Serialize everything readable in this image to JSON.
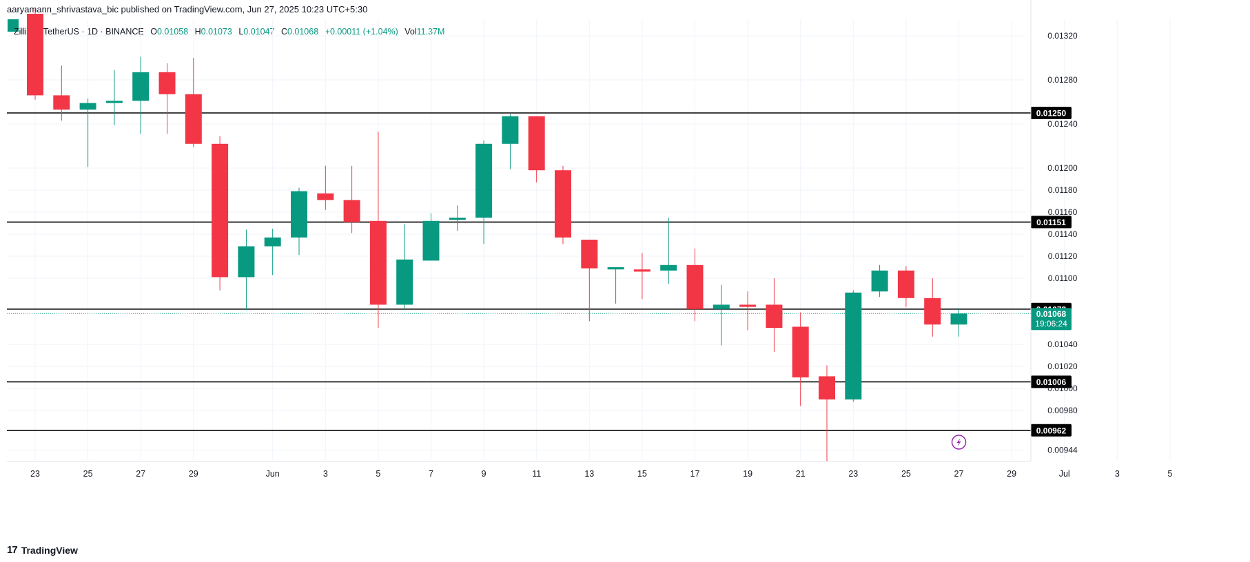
{
  "publisher": "aaryamann_shrivastava_bic published on TradingView.com, Jun 27, 2025 10:23 UTC+5:30",
  "legend": {
    "symbol": "Zilliqa / TetherUS · 1D · BINANCE",
    "open_label": "O",
    "open": "0.01058",
    "high_label": "H",
    "high": "0.01073",
    "low_label": "L",
    "low": "0.01047",
    "close_label": "C",
    "close": "0.01068",
    "change": "+0.00011 (+1.04%)",
    "vol_label": "Vol",
    "vol": "11.37M"
  },
  "brand": {
    "logo": "17",
    "name": "TradingView"
  },
  "colors": {
    "up": "#089981",
    "down": "#f23645",
    "grid": "#f0f3fa",
    "text": "#131722",
    "line": "#000000",
    "alert": "#9c27b0"
  },
  "chart_data": {
    "type": "candlestick",
    "title": "Zilliqa / TetherUS · 1D · BINANCE",
    "ylim": [
      0.00935,
      0.01335
    ],
    "x_tick_labels": [
      "23",
      "25",
      "27",
      "29",
      "Jun",
      "3",
      "5",
      "7",
      "9",
      "11",
      "13",
      "15",
      "17",
      "19",
      "21",
      "23",
      "25",
      "27",
      "29",
      "Jul",
      "3",
      "5"
    ],
    "x_tick_day_index": [
      0,
      2,
      4,
      6,
      9,
      11,
      13,
      15,
      17,
      19,
      21,
      23,
      25,
      27,
      29,
      31,
      33,
      35,
      37,
      39,
      41,
      43
    ],
    "y_tick_labels": [
      "0.01320",
      "0.01280",
      "0.01240",
      "0.01200",
      "0.01180",
      "0.01160",
      "0.01140",
      "0.01120",
      "0.01100",
      "0.01040",
      "0.01020",
      "0.01000",
      "0.00980",
      "0.00944"
    ],
    "horizontal_levels": [
      "0.01250",
      "0.01151",
      "0.01072",
      "0.01006",
      "0.00962"
    ],
    "current_price": "0.01068",
    "countdown": "19:06:24",
    "candles": [
      {
        "date": "May 23",
        "o": 0.0134,
        "h": 0.01345,
        "l": 0.01262,
        "c": 0.01266
      },
      {
        "date": "May 24",
        "o": 0.01266,
        "h": 0.01293,
        "l": 0.01243,
        "c": 0.01253
      },
      {
        "date": "May 25",
        "o": 0.01253,
        "h": 0.01263,
        "l": 0.01201,
        "c": 0.01259
      },
      {
        "date": "May 26",
        "o": 0.01259,
        "h": 0.01289,
        "l": 0.01239,
        "c": 0.01261
      },
      {
        "date": "May 27",
        "o": 0.01261,
        "h": 0.01301,
        "l": 0.01231,
        "c": 0.01287
      },
      {
        "date": "May 28",
        "o": 0.01287,
        "h": 0.01295,
        "l": 0.01231,
        "c": 0.01267
      },
      {
        "date": "May 29",
        "o": 0.01267,
        "h": 0.013,
        "l": 0.01219,
        "c": 0.01222
      },
      {
        "date": "May 30",
        "o": 0.01222,
        "h": 0.01229,
        "l": 0.01089,
        "c": 0.01101
      },
      {
        "date": "May 31",
        "o": 0.01101,
        "h": 0.01144,
        "l": 0.01071,
        "c": 0.01129
      },
      {
        "date": "Jun 1",
        "o": 0.01129,
        "h": 0.01145,
        "l": 0.01103,
        "c": 0.01137
      },
      {
        "date": "Jun 2",
        "o": 0.01137,
        "h": 0.01182,
        "l": 0.01121,
        "c": 0.01179
      },
      {
        "date": "Jun 3",
        "o": 0.01177,
        "h": 0.01202,
        "l": 0.01162,
        "c": 0.01171
      },
      {
        "date": "Jun 4",
        "o": 0.01171,
        "h": 0.01202,
        "l": 0.01141,
        "c": 0.01151
      },
      {
        "date": "Jun 5",
        "o": 0.01152,
        "h": 0.01233,
        "l": 0.01055,
        "c": 0.01076
      },
      {
        "date": "Jun 6",
        "o": 0.01076,
        "h": 0.01149,
        "l": 0.01073,
        "c": 0.01117
      },
      {
        "date": "Jun 7",
        "o": 0.01116,
        "h": 0.01159,
        "l": 0.01116,
        "c": 0.01152
      },
      {
        "date": "Jun 8",
        "o": 0.01153,
        "h": 0.01166,
        "l": 0.01143,
        "c": 0.01155
      },
      {
        "date": "Jun 9",
        "o": 0.01155,
        "h": 0.01225,
        "l": 0.01131,
        "c": 0.01222
      },
      {
        "date": "Jun 10",
        "o": 0.01222,
        "h": 0.01249,
        "l": 0.01199,
        "c": 0.01247
      },
      {
        "date": "Jun 11",
        "o": 0.01247,
        "h": 0.01247,
        "l": 0.01187,
        "c": 0.01198
      },
      {
        "date": "Jun 12",
        "o": 0.01198,
        "h": 0.01202,
        "l": 0.01131,
        "c": 0.01137
      },
      {
        "date": "Jun 13",
        "o": 0.01135,
        "h": 0.01135,
        "l": 0.01061,
        "c": 0.01109
      },
      {
        "date": "Jun 14",
        "o": 0.01108,
        "h": 0.01109,
        "l": 0.01077,
        "c": 0.0111
      },
      {
        "date": "Jun 15",
        "o": 0.01108,
        "h": 0.01123,
        "l": 0.01081,
        "c": 0.01106
      },
      {
        "date": "Jun 16",
        "o": 0.01107,
        "h": 0.01155,
        "l": 0.01095,
        "c": 0.01112
      },
      {
        "date": "Jun 17",
        "o": 0.01112,
        "h": 0.01127,
        "l": 0.01061,
        "c": 0.01072
      },
      {
        "date": "Jun 18",
        "o": 0.01072,
        "h": 0.01094,
        "l": 0.01039,
        "c": 0.01076
      },
      {
        "date": "Jun 19",
        "o": 0.01076,
        "h": 0.01088,
        "l": 0.01053,
        "c": 0.01074
      },
      {
        "date": "Jun 20",
        "o": 0.01076,
        "h": 0.011,
        "l": 0.01033,
        "c": 0.01055
      },
      {
        "date": "Jun 21",
        "o": 0.01056,
        "h": 0.01069,
        "l": 0.00984,
        "c": 0.0101
      },
      {
        "date": "Jun 22",
        "o": 0.01011,
        "h": 0.01021,
        "l": 0.00934,
        "c": 0.0099
      },
      {
        "date": "Jun 23",
        "o": 0.0099,
        "h": 0.01089,
        "l": 0.00988,
        "c": 0.01087
      },
      {
        "date": "Jun 24",
        "o": 0.01088,
        "h": 0.01112,
        "l": 0.01083,
        "c": 0.01107
      },
      {
        "date": "Jun 25",
        "o": 0.01107,
        "h": 0.01111,
        "l": 0.01074,
        "c": 0.01082
      },
      {
        "date": "Jun 26",
        "o": 0.01082,
        "h": 0.011,
        "l": 0.01047,
        "c": 0.01058
      },
      {
        "date": "Jun 27",
        "o": 0.01058,
        "h": 0.01073,
        "l": 0.01047,
        "c": 0.01068
      }
    ]
  }
}
